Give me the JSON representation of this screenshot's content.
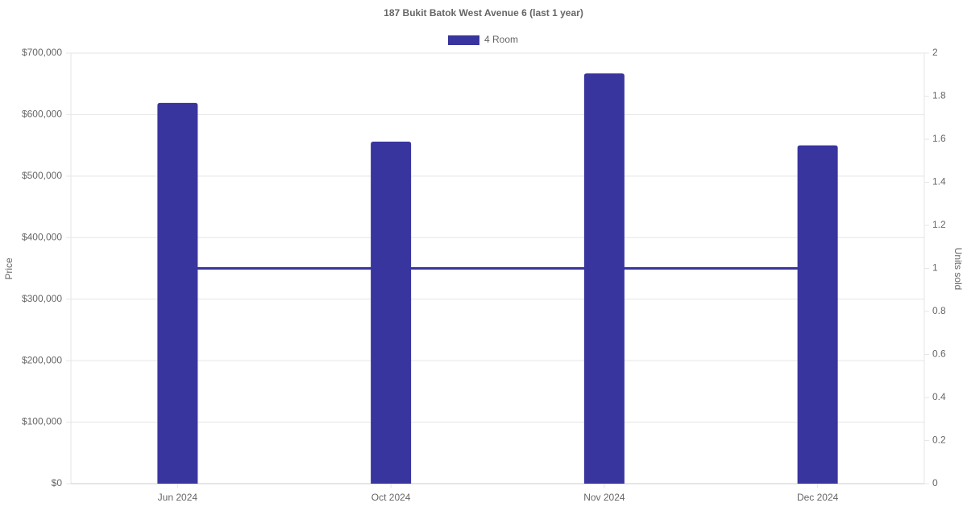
{
  "chart_data": {
    "type": "bar",
    "title": "187 Bukit Batok West Avenue 6 (last 1 year)",
    "y_label": "Price",
    "y2_label": "Units sold",
    "categories": [
      "Jun 2024",
      "Oct 2024",
      "Nov 2024",
      "Dec 2024"
    ],
    "series": [
      {
        "name": "4 Room",
        "color": "#38359e",
        "values": [
          619000,
          556000,
          667000,
          550000
        ]
      },
      {
        "type": "line",
        "axis": "y2",
        "color": "#38359e",
        "values": [
          1,
          1,
          1,
          1
        ]
      }
    ],
    "ylim": [
      0,
      700000
    ],
    "yticks": [
      {
        "value": 0,
        "label": "$0"
      },
      {
        "value": 100000,
        "label": "$100,000"
      },
      {
        "value": 200000,
        "label": "$200,000"
      },
      {
        "value": 300000,
        "label": "$300,000"
      },
      {
        "value": 400000,
        "label": "$400,000"
      },
      {
        "value": 500000,
        "label": "$500,000"
      },
      {
        "value": 600000,
        "label": "$600,000"
      },
      {
        "value": 700000,
        "label": "$700,000"
      }
    ],
    "y2lim": [
      0,
      2
    ],
    "y2ticks": [
      0,
      0.2,
      0.4,
      0.6,
      0.8,
      1,
      1.2,
      1.4,
      1.6,
      1.8,
      2
    ],
    "grid": true,
    "legend": "top"
  }
}
